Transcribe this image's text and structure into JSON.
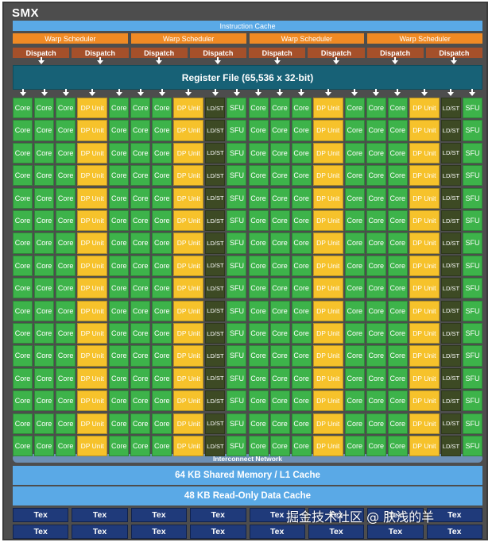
{
  "smx": {
    "title": "SMX",
    "instruction_cache": "Instruction Cache",
    "warp_schedulers": [
      "Warp Scheduler",
      "Warp Scheduler",
      "Warp Scheduler",
      "Warp Scheduler"
    ],
    "dispatch_units": [
      "Dispatch",
      "Dispatch",
      "Dispatch",
      "Dispatch",
      "Dispatch",
      "Dispatch",
      "Dispatch",
      "Dispatch"
    ],
    "register_file": "Register File (65,536 x 32-bit)",
    "unit_columns": [
      "Core",
      "Core",
      "Core",
      "DP Unit",
      "Core",
      "Core",
      "Core",
      "DP Unit",
      "LD/ST",
      "SFU",
      "Core",
      "Core",
      "Core",
      "DP Unit",
      "Core",
      "Core",
      "Core",
      "DP Unit",
      "LD/ST",
      "SFU"
    ],
    "row_count": 16,
    "interconnect": "Interconnect Network",
    "shared_memory": "64 KB Shared Memory / L1 Cache",
    "readonly_cache": "48 KB Read-Only Data Cache",
    "tex_units": [
      "Tex",
      "Tex",
      "Tex",
      "Tex",
      "Tex",
      "Tex",
      "Tex",
      "Tex",
      "Tex",
      "Tex",
      "Tex",
      "Tex",
      "Tex",
      "Tex",
      "Tex",
      "Tex"
    ],
    "watermark": "掘金技术社区 @ 肤浅的羊"
  },
  "colors": {
    "background": "#4d4d4d",
    "cache": "#5aa9e6",
    "warp_scheduler": "#f08a24",
    "dispatch": "#a5502a",
    "register_file": "#176176",
    "core": "#3db34a",
    "dp_unit": "#f6c22b",
    "ld_st": "#3d4a24",
    "sfu": "#3db34a",
    "interconnect": "#6c8fb4",
    "tex": "#1f3a7a"
  }
}
